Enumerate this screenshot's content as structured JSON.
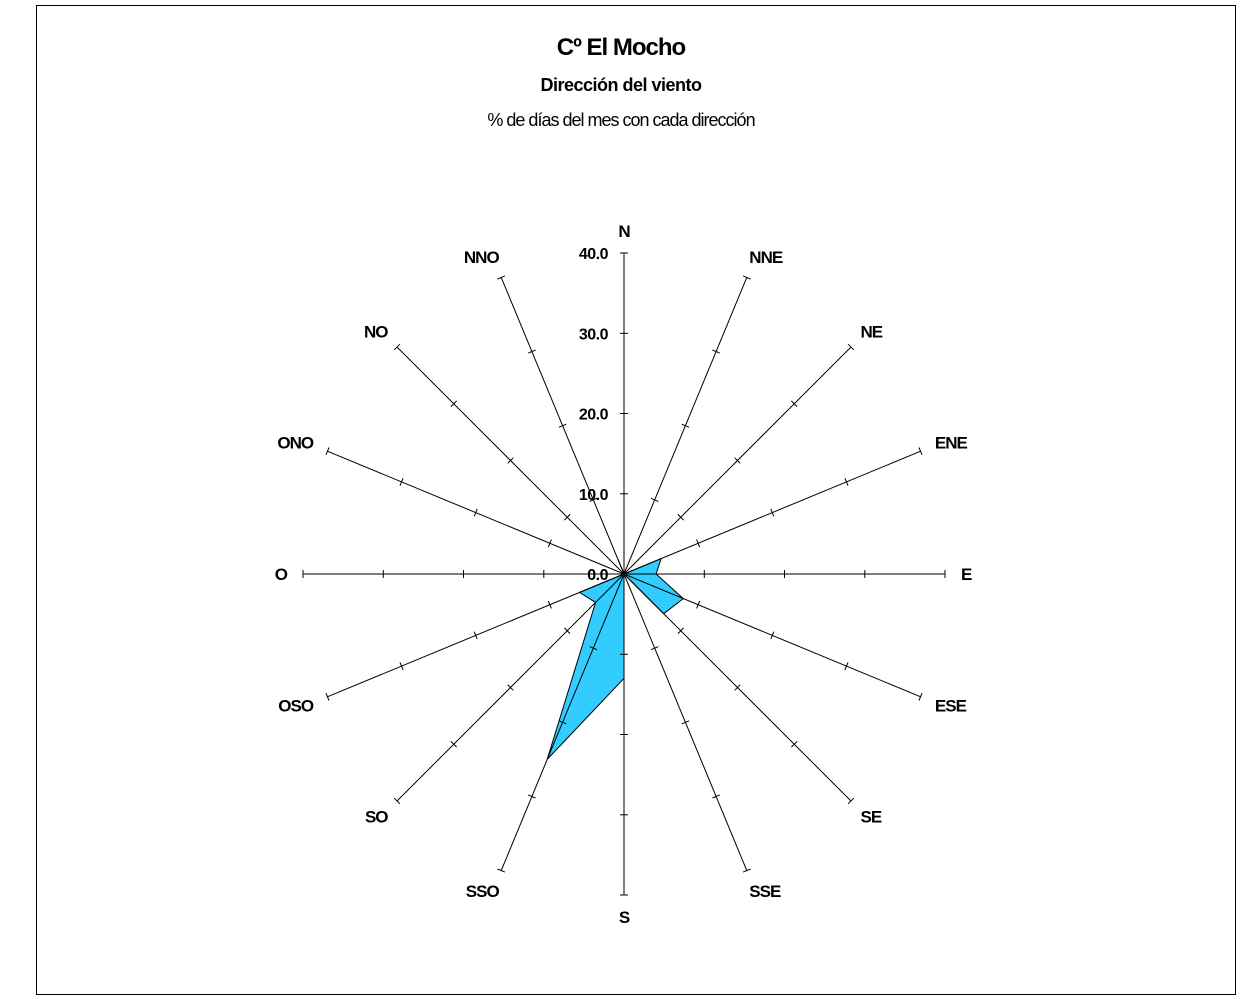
{
  "chart_data": {
    "type": "radar",
    "title": "Cº El Mocho",
    "subtitle": "Dirección del viento",
    "caption": "% de días del mes con cada dirección",
    "directions": [
      "N",
      "NNE",
      "NE",
      "ENE",
      "E",
      "ESE",
      "SE",
      "SSE",
      "S",
      "SSO",
      "SO",
      "OSO",
      "O",
      "ONO",
      "NO",
      "NNO"
    ],
    "values": [
      0.0,
      0.0,
      0.0,
      5.0,
      4.0,
      8.0,
      7.0,
      0.0,
      13.0,
      25.0,
      5.0,
      6.0,
      0.0,
      0.0,
      0.0,
      2.0
    ],
    "rlim": [
      0,
      40
    ],
    "tick_values": [
      0,
      10,
      20,
      30,
      40
    ],
    "tick_labels": [
      "0.0",
      "10.0",
      "20.0",
      "30.0",
      "40.0"
    ],
    "fill_color": "#33CCFF",
    "stroke_color": "#000000"
  }
}
